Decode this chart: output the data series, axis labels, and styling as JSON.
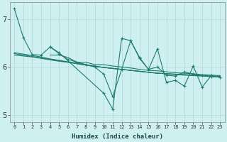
{
  "xlabel": "Humidex (Indice chaleur)",
  "bg_color": "#cff0f0",
  "grid_color": "#b8dede",
  "line_color": "#1e7b70",
  "xlim": [
    -0.5,
    23.5
  ],
  "ylim": [
    4.85,
    7.35
  ],
  "yticks": [
    5,
    6,
    7
  ],
  "xticks": [
    0,
    1,
    2,
    3,
    4,
    5,
    6,
    7,
    8,
    9,
    10,
    11,
    12,
    13,
    14,
    15,
    16,
    17,
    18,
    19,
    20,
    21,
    22,
    23
  ],
  "series_smooth": [
    [
      6.28,
      6.25,
      6.22,
      6.19,
      6.16,
      6.13,
      6.1,
      6.07,
      6.04,
      6.01,
      5.99,
      5.97,
      5.95,
      5.93,
      5.91,
      5.89,
      5.87,
      5.86,
      5.85,
      5.84,
      5.83,
      5.82,
      5.81,
      5.8
    ],
    [
      6.3,
      6.27,
      6.24,
      6.21,
      6.17,
      6.14,
      6.11,
      6.08,
      6.05,
      6.02,
      5.99,
      5.97,
      5.95,
      5.93,
      5.91,
      5.89,
      5.87,
      5.86,
      5.85,
      5.84,
      5.83,
      5.82,
      5.81,
      5.8
    ],
    [
      6.25,
      6.23,
      6.21,
      6.18,
      6.15,
      6.12,
      6.1,
      6.07,
      6.04,
      6.02,
      5.99,
      5.97,
      5.95,
      5.93,
      5.91,
      5.89,
      5.87,
      5.86,
      5.84,
      5.83,
      5.82,
      5.81,
      5.8,
      5.79
    ]
  ],
  "series_main": [
    7.22,
    6.62,
    6.26,
    6.25,
    6.42,
    6.28,
    6.16,
    6.1,
    6.05,
    6.0,
    5.85,
    5.38,
    5.95,
    6.55,
    6.18,
    5.95,
    6.0,
    5.83,
    5.81,
    5.9,
    5.85,
    5.82,
    5.8,
    5.79
  ],
  "series_zigzag": [
    [
      null,
      null,
      null,
      null,
      6.25,
      6.25,
      6.2,
      6.1,
      6.1,
      6.05,
      6.05,
      6.02,
      6.0,
      5.98,
      5.95,
      5.93,
      5.92,
      5.9,
      5.88,
      5.87,
      5.86,
      5.84,
      5.83,
      5.82
    ],
    [
      null,
      null,
      null,
      null,
      6.42,
      6.3,
      null,
      null,
      null,
      null,
      5.45,
      5.12,
      6.6,
      6.55,
      6.2,
      5.95,
      6.38,
      5.68,
      5.72,
      5.6,
      6.02,
      5.58,
      5.82,
      5.79
    ]
  ]
}
